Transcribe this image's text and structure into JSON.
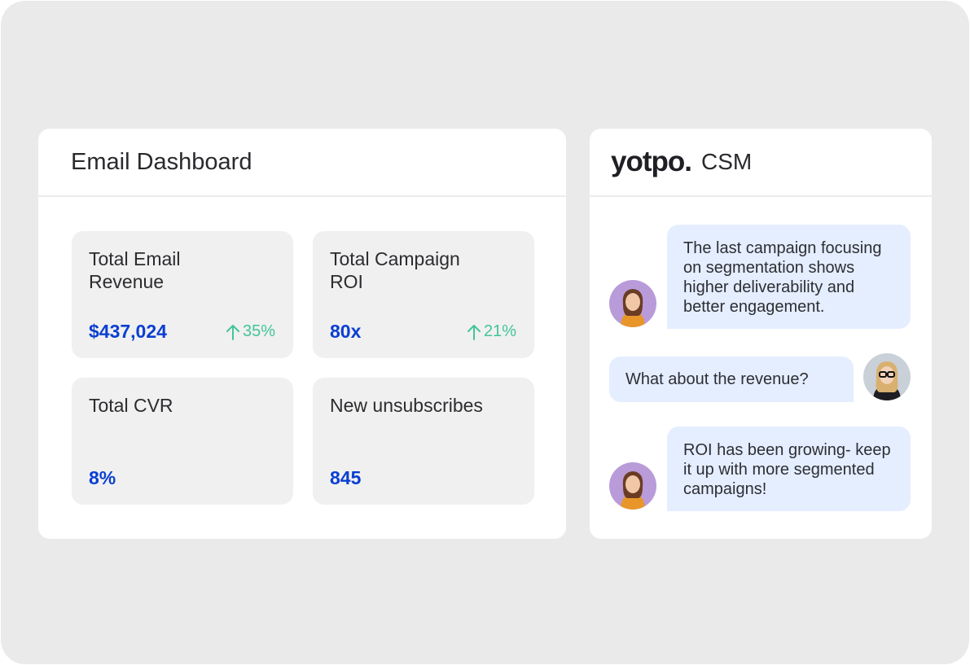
{
  "dashboard": {
    "title": "Email Dashboard",
    "metrics": [
      {
        "label": "Total Email Revenue",
        "value": "$437,024",
        "change": "35%",
        "trend": "up"
      },
      {
        "label": "Total Campaign ROI",
        "value": "80x",
        "change": "21%",
        "trend": "up"
      },
      {
        "label": "Total CVR",
        "value": "8%"
      },
      {
        "label": "New unsubscribes",
        "value": "845"
      }
    ]
  },
  "chat": {
    "brand": "yotpo.",
    "title": "CSM",
    "messages": [
      {
        "from": "csm",
        "text": "The last campaign focusing on segmentation shows higher deliverability and better engagement."
      },
      {
        "from": "user",
        "text": "What about the revenue?"
      },
      {
        "from": "csm",
        "text": "ROI has been growing- keep it up with more segmented campaigns!"
      }
    ]
  },
  "colors": {
    "accent_value": "#0a3fd1",
    "positive_change": "#42c49a",
    "bubble": "#e4eeff",
    "background": "#eaeaea"
  },
  "icons": [
    "arrow-up-icon",
    "csm-avatar",
    "user-avatar"
  ]
}
